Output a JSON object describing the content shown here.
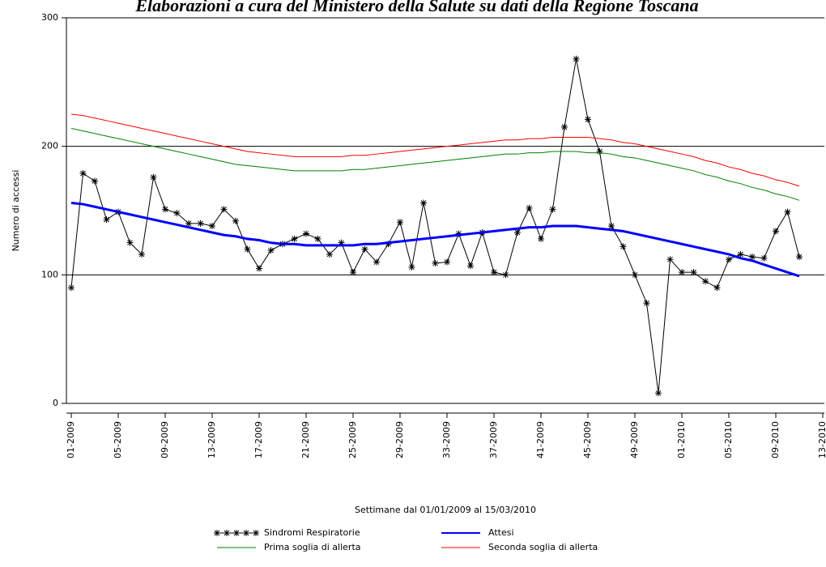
{
  "chart_data": {
    "type": "line",
    "title": "Elaborazioni a cura del Ministero della Salute su dati della Regione Toscana",
    "y_label": "Numero di accessi",
    "x_label": "Settimane dal 01/01/2009 al 15/03/2010",
    "categories": [
      "01-2009",
      null,
      null,
      null,
      "05-2009",
      null,
      null,
      null,
      "09-2009",
      null,
      null,
      null,
      "13-2009",
      null,
      null,
      null,
      "17-2009",
      null,
      null,
      null,
      "21-2009",
      null,
      null,
      null,
      "25-2009",
      null,
      null,
      null,
      "29-2009",
      null,
      null,
      null,
      "33-2009",
      null,
      null,
      null,
      "37-2009",
      null,
      null,
      null,
      "41-2009",
      null,
      null,
      null,
      "45-2009",
      null,
      null,
      null,
      "49-2009",
      null,
      null,
      null,
      "01-2010",
      null,
      null,
      null,
      "05-2010",
      null,
      null,
      null,
      "09-2010",
      null,
      null,
      null,
      "13-2010"
    ],
    "ylim": [
      0,
      300
    ],
    "yticks": [
      0,
      100,
      200,
      300
    ],
    "grid": true,
    "series": [
      {
        "name": "Sindromi Respiratorie",
        "color": "#000000",
        "marker": "asterisk",
        "values": [
          90,
          179,
          173,
          143,
          149,
          125,
          116,
          176,
          151,
          148,
          140,
          140,
          138,
          151,
          142,
          120,
          105,
          119,
          124,
          128,
          132,
          128,
          116,
          125,
          102,
          120,
          110,
          124,
          141,
          106,
          156,
          109,
          110,
          132,
          107,
          133,
          102,
          100,
          133,
          152,
          128,
          151,
          215,
          268,
          221,
          196,
          138,
          122,
          100,
          78,
          8,
          112,
          102,
          102,
          95,
          90,
          112,
          116,
          114,
          113,
          134,
          149,
          114,
          null,
          null
        ]
      },
      {
        "name": "Attesi",
        "color": "#0000ff",
        "width": 3,
        "values": [
          156,
          155,
          153,
          151,
          149,
          147,
          145,
          143,
          141,
          139,
          137,
          135,
          133,
          131,
          130,
          128,
          127,
          125,
          124,
          124,
          123,
          123,
          123,
          123,
          123,
          124,
          124,
          125,
          126,
          127,
          128,
          129,
          130,
          131,
          132,
          133,
          134,
          135,
          136,
          137,
          137,
          138,
          138,
          138,
          137,
          136,
          135,
          134,
          132,
          130,
          128,
          126,
          124,
          122,
          120,
          118,
          116,
          113,
          111,
          108,
          105,
          102,
          99,
          null,
          null
        ]
      },
      {
        "name": "Prima soglia di allerta",
        "color": "#008000",
        "width": 1,
        "values": [
          214,
          212,
          210,
          208,
          206,
          204,
          202,
          200,
          198,
          196,
          194,
          192,
          190,
          188,
          186,
          185,
          184,
          183,
          182,
          181,
          181,
          181,
          181,
          181,
          182,
          182,
          183,
          184,
          185,
          186,
          187,
          188,
          189,
          190,
          191,
          192,
          193,
          194,
          194,
          195,
          195,
          196,
          196,
          196,
          195,
          195,
          194,
          192,
          191,
          189,
          187,
          185,
          183,
          181,
          178,
          176,
          173,
          171,
          168,
          166,
          163,
          161,
          158,
          null,
          null
        ]
      },
      {
        "name": "Seconda soglia di allerta",
        "color": "#ff0000",
        "width": 1,
        "values": [
          225,
          224,
          222,
          220,
          218,
          216,
          214,
          212,
          210,
          208,
          206,
          204,
          202,
          200,
          198,
          196,
          195,
          194,
          193,
          192,
          192,
          192,
          192,
          192,
          193,
          193,
          194,
          195,
          196,
          197,
          198,
          199,
          200,
          201,
          202,
          203,
          204,
          205,
          205,
          206,
          206,
          207,
          207,
          207,
          207,
          206,
          205,
          203,
          202,
          200,
          198,
          196,
          194,
          192,
          189,
          187,
          184,
          182,
          179,
          177,
          174,
          172,
          169,
          null,
          null
        ]
      }
    ]
  }
}
